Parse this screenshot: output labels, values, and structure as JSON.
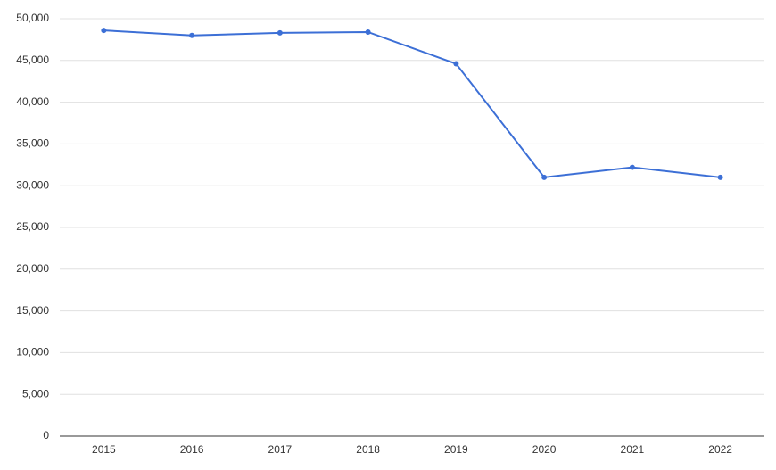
{
  "chart_data": {
    "type": "line",
    "categories": [
      "2015",
      "2016",
      "2017",
      "2018",
      "2019",
      "2020",
      "2021",
      "2022"
    ],
    "series": [
      {
        "color": "#3c6fd6",
        "values": [
          48600,
          48000,
          48300,
          48400,
          44600,
          31000,
          32200,
          31000
        ]
      }
    ],
    "ylim": [
      0,
      50000
    ],
    "yticks": [
      0,
      {
        "value": 5000,
        "label": "5,000"
      },
      {
        "value": 10000,
        "label": "10,000"
      },
      {
        "value": 15000,
        "label": "15,000"
      },
      {
        "value": 20000,
        "label": "20,000"
      },
      {
        "value": 25000,
        "label": "25,000"
      },
      {
        "value": 30000,
        "label": "30,000"
      },
      {
        "value": 35000,
        "label": "35,000"
      },
      {
        "value": 40000,
        "label": "40,000"
      },
      {
        "value": 45000,
        "label": "45,000"
      },
      {
        "value": 50000,
        "label": "50,000"
      }
    ],
    "grid": true
  }
}
